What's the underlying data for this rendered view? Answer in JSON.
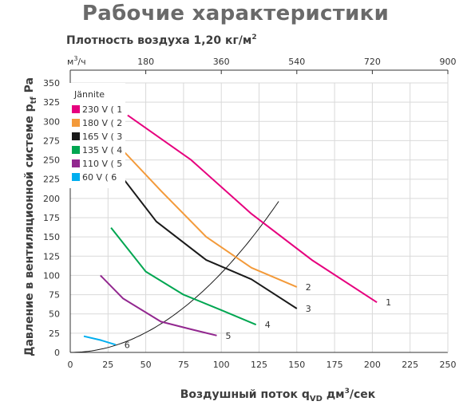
{
  "page": {
    "title": "Рабочие характеристики"
  },
  "chart_data": {
    "type": "line",
    "title": "Рабочие характеристики",
    "subtitle_prefix": "Плотность воздуха",
    "subtitle_value": "1,20 кг/м",
    "subtitle_sup": "2",
    "xlabel_prefix": "Воздушный поток q",
    "xlabel_sub": "VD",
    "xlabel_unit": " дм",
    "xlabel_sup": "3",
    "xlabel_tail": "/сек",
    "ylabel_prefix": "Давление в вентиляционной системе p",
    "ylabel_sub": "tf",
    "ylabel_unit": " Pa",
    "xlim": [
      0,
      250
    ],
    "ylim": [
      0,
      350
    ],
    "x_ticks": [
      0,
      25,
      50,
      75,
      100,
      125,
      150,
      175,
      200,
      225,
      250
    ],
    "y_ticks": [
      0,
      25,
      50,
      75,
      100,
      125,
      150,
      175,
      200,
      225,
      250,
      275,
      300,
      325,
      350
    ],
    "secondary_x": {
      "unit_prefix": "м",
      "unit_sup": "3",
      "unit_tail": "/ч",
      "ticks": [
        180,
        360,
        540,
        720,
        900
      ],
      "per_primary_unit": 3.6
    },
    "legend": {
      "title": "Jännite",
      "placement": "top-left"
    },
    "grid": true,
    "series": [
      {
        "legend": "230 V  ( 1",
        "curve_label": "1",
        "color": "#e6007e",
        "x": [
          38,
          80,
          120,
          160,
          203
        ],
        "y": [
          308,
          250,
          180,
          120,
          65
        ]
      },
      {
        "legend": "180 V  ( 2",
        "curve_label": "2",
        "color": "#f39a3a",
        "x": [
          35,
          60,
          90,
          120,
          150
        ],
        "y": [
          262,
          210,
          150,
          110,
          85
        ]
      },
      {
        "legend": "165 V  ( 3",
        "curve_label": "3",
        "color": "#1a1a1a",
        "x": [
          35,
          57,
          90,
          120,
          150
        ],
        "y": [
          226,
          170,
          120,
          95,
          57
        ]
      },
      {
        "legend": "135 V  ( 4",
        "curve_label": "4",
        "color": "#00a651",
        "x": [
          27,
          50,
          75,
          100,
          123
        ],
        "y": [
          162,
          105,
          75,
          55,
          36
        ]
      },
      {
        "legend": "110 V  ( 5",
        "curve_label": "5",
        "color": "#92278f",
        "x": [
          20,
          35,
          60,
          80,
          97
        ],
        "y": [
          100,
          70,
          40,
          30,
          22
        ]
      },
      {
        "legend": " 60 V  ( 6",
        "curve_label": "6",
        "color": "#00aeef",
        "x": [
          9,
          20,
          30
        ],
        "y": [
          21,
          16,
          10
        ]
      }
    ],
    "system_curve": {
      "color": "#1a1a1a",
      "k": 0.0103,
      "x_max": 138
    }
  }
}
